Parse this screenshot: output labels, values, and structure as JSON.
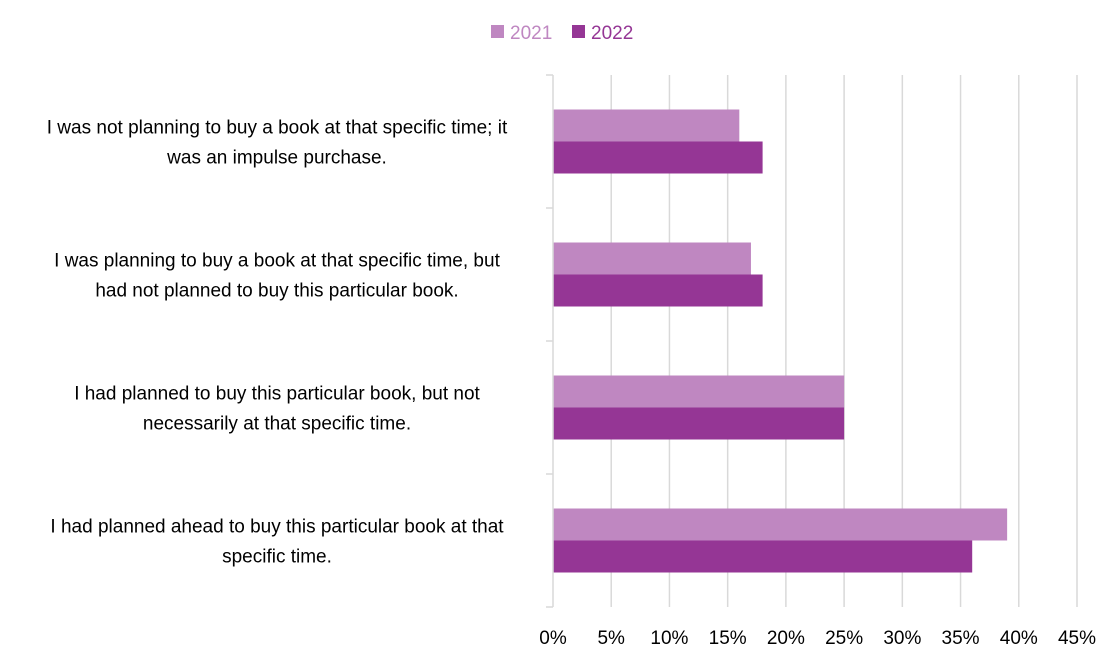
{
  "chart_data": {
    "type": "bar",
    "orientation": "horizontal",
    "categories": [
      [
        "I was not planning to buy a book at that specific time; it",
        "was an impulse purchase."
      ],
      [
        "I was planning to buy a book at that specific time, but",
        "had not planned to buy this particular book."
      ],
      [
        "I had planned to buy this particular book, but not",
        "necessarily at that specific time."
      ],
      [
        "I had planned ahead to buy this particular book at that",
        "specific time."
      ]
    ],
    "series": [
      {
        "name": "2021",
        "color": "#bf87c1",
        "values": [
          16,
          17,
          25,
          39
        ]
      },
      {
        "name": "2022",
        "color": "#953695",
        "values": [
          18,
          18,
          25,
          36
        ]
      }
    ],
    "xlim": [
      0,
      45
    ],
    "xticks": [
      0,
      5,
      10,
      15,
      20,
      25,
      30,
      35,
      40,
      45
    ],
    "tick_suffix": "%",
    "grid": true,
    "legend_position": "top-center"
  }
}
